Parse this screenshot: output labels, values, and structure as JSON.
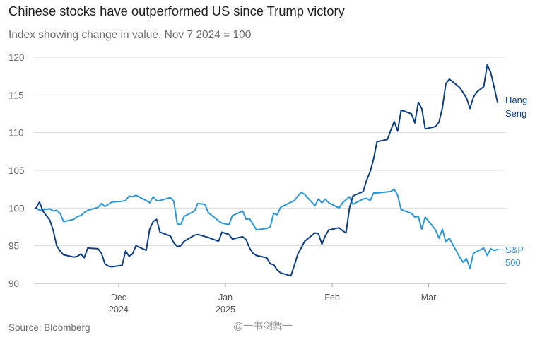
{
  "title": "Chinese stocks have outperformed US since Trump victory",
  "subtitle": "Index showing change in value. Nov 7 2024 = 100",
  "source": "Source: Bloomberg",
  "watermark": "@一书剑舞一",
  "colors": {
    "hang_seng": "#0d3f85",
    "sp500": "#2c97d6",
    "grid": "#dcdcdc",
    "axis": "#aaaaaa"
  },
  "chart_data": {
    "type": "line",
    "ylim": [
      89,
      121
    ],
    "yticks": [
      90,
      95,
      100,
      105,
      110,
      115,
      120
    ],
    "grid": true,
    "legend": "inline labels at line ends",
    "xticks": [
      {
        "date": "2024-12-01",
        "label1": "Dec",
        "label2": "2024"
      },
      {
        "date": "2025-01-01",
        "label1": "Jan",
        "label2": "2025"
      },
      {
        "date": "2025-02-01",
        "label1": "Feb",
        "label2": ""
      },
      {
        "date": "2025-03-01",
        "label1": "Mar",
        "label2": ""
      }
    ],
    "x_range": [
      "2024-11-07",
      "2025-03-21"
    ],
    "series": [
      {
        "name": "Hang Seng",
        "label_lines": [
          "Hang",
          "Seng"
        ],
        "points": [
          [
            "2024-11-07",
            100.0
          ],
          [
            "2024-11-08",
            100.8
          ],
          [
            "2024-11-09",
            99.6
          ],
          [
            "2024-11-11",
            98.4
          ],
          [
            "2024-11-12",
            97.0
          ],
          [
            "2024-11-13",
            95.0
          ],
          [
            "2024-11-14",
            94.3
          ],
          [
            "2024-11-15",
            93.8
          ],
          [
            "2024-11-18",
            93.5
          ],
          [
            "2024-11-19",
            93.6
          ],
          [
            "2024-11-20",
            93.9
          ],
          [
            "2024-11-21",
            93.4
          ],
          [
            "2024-11-22",
            94.7
          ],
          [
            "2024-11-25",
            94.6
          ],
          [
            "2024-11-26",
            94.0
          ],
          [
            "2024-11-27",
            92.6
          ],
          [
            "2024-11-28",
            92.3
          ],
          [
            "2024-11-29",
            92.2
          ],
          [
            "2024-12-02",
            92.4
          ],
          [
            "2024-12-03",
            94.3
          ],
          [
            "2024-12-04",
            93.6
          ],
          [
            "2024-12-05",
            93.9
          ],
          [
            "2024-12-06",
            95.0
          ],
          [
            "2024-12-09",
            94.4
          ],
          [
            "2024-12-10",
            97.2
          ],
          [
            "2024-12-11",
            98.2
          ],
          [
            "2024-12-12",
            98.5
          ],
          [
            "2024-12-13",
            96.8
          ],
          [
            "2024-12-16",
            96.3
          ],
          [
            "2024-12-17",
            95.4
          ],
          [
            "2024-12-18",
            94.9
          ],
          [
            "2024-12-19",
            95.0
          ],
          [
            "2024-12-20",
            95.6
          ],
          [
            "2024-12-23",
            96.4
          ],
          [
            "2024-12-24",
            96.5
          ],
          [
            "2024-12-27",
            96.1
          ],
          [
            "2024-12-30",
            95.6
          ],
          [
            "2024-12-31",
            96.8
          ],
          [
            "2025-01-02",
            96.5
          ],
          [
            "2025-01-03",
            95.9
          ],
          [
            "2025-01-06",
            96.2
          ],
          [
            "2025-01-07",
            95.8
          ],
          [
            "2025-01-08",
            94.7
          ],
          [
            "2025-01-09",
            94.0
          ],
          [
            "2025-01-10",
            93.7
          ],
          [
            "2025-01-13",
            93.4
          ],
          [
            "2025-01-14",
            92.6
          ],
          [
            "2025-01-15",
            92.5
          ],
          [
            "2025-01-16",
            91.8
          ],
          [
            "2025-01-17",
            91.4
          ],
          [
            "2025-01-20",
            91.0
          ],
          [
            "2025-01-21",
            92.4
          ],
          [
            "2025-01-22",
            93.9
          ],
          [
            "2025-01-23",
            94.7
          ],
          [
            "2025-01-24",
            95.6
          ],
          [
            "2025-01-27",
            96.7
          ],
          [
            "2025-01-28",
            96.6
          ],
          [
            "2025-01-29",
            95.2
          ],
          [
            "2025-01-30",
            96.3
          ],
          [
            "2025-01-31",
            97.1
          ],
          [
            "2025-02-03",
            97.4
          ],
          [
            "2025-02-04",
            97.0
          ],
          [
            "2025-02-05",
            96.7
          ],
          [
            "2025-02-06",
            100.0
          ],
          [
            "2025-02-07",
            101.6
          ],
          [
            "2025-02-10",
            102.2
          ],
          [
            "2025-02-11",
            103.7
          ],
          [
            "2025-02-12",
            104.8
          ],
          [
            "2025-02-13",
            106.5
          ],
          [
            "2025-02-14",
            108.8
          ],
          [
            "2025-02-17",
            109.1
          ],
          [
            "2025-02-18",
            110.3
          ],
          [
            "2025-02-19",
            111.5
          ],
          [
            "2025-02-20",
            110.2
          ],
          [
            "2025-02-21",
            113.0
          ],
          [
            "2025-02-24",
            112.5
          ],
          [
            "2025-02-25",
            111.3
          ],
          [
            "2025-02-26",
            114.0
          ],
          [
            "2025-02-27",
            113.2
          ],
          [
            "2025-02-28",
            110.5
          ],
          [
            "2025-03-03",
            110.8
          ],
          [
            "2025-03-04",
            111.4
          ],
          [
            "2025-03-05",
            113.3
          ],
          [
            "2025-03-06",
            116.5
          ],
          [
            "2025-03-07",
            117.1
          ],
          [
            "2025-03-10",
            116.0
          ],
          [
            "2025-03-11",
            115.3
          ],
          [
            "2025-03-12",
            114.6
          ],
          [
            "2025-03-13",
            113.2
          ],
          [
            "2025-03-14",
            114.7
          ],
          [
            "2025-03-15",
            115.4
          ],
          [
            "2025-03-17",
            116.1
          ],
          [
            "2025-03-18",
            119.0
          ],
          [
            "2025-03-19",
            118.0
          ],
          [
            "2025-03-20",
            116.1
          ],
          [
            "2025-03-21",
            114.0
          ]
        ]
      },
      {
        "name": "S&P 500",
        "label_lines": [
          "S&P",
          "500"
        ],
        "points": [
          [
            "2024-11-07",
            100.0
          ],
          [
            "2024-11-08",
            99.7
          ],
          [
            "2024-11-11",
            99.9
          ],
          [
            "2024-11-12",
            99.6
          ],
          [
            "2024-11-13",
            99.7
          ],
          [
            "2024-11-14",
            99.3
          ],
          [
            "2024-11-15",
            98.2
          ],
          [
            "2024-11-18",
            98.5
          ],
          [
            "2024-11-19",
            98.9
          ],
          [
            "2024-11-20",
            99.0
          ],
          [
            "2024-11-21",
            99.4
          ],
          [
            "2024-11-22",
            99.7
          ],
          [
            "2024-11-25",
            100.1
          ],
          [
            "2024-11-26",
            100.6
          ],
          [
            "2024-11-27",
            100.2
          ],
          [
            "2024-11-29",
            100.8
          ],
          [
            "2024-12-02",
            100.9
          ],
          [
            "2024-12-03",
            101.0
          ],
          [
            "2024-12-04",
            101.6
          ],
          [
            "2024-12-05",
            101.5
          ],
          [
            "2024-12-06",
            101.7
          ],
          [
            "2024-12-09",
            101.0
          ],
          [
            "2024-12-10",
            100.7
          ],
          [
            "2024-12-11",
            101.5
          ],
          [
            "2024-12-12",
            101.0
          ],
          [
            "2024-12-13",
            101.0
          ],
          [
            "2024-12-16",
            101.4
          ],
          [
            "2024-12-17",
            100.9
          ],
          [
            "2024-12-18",
            97.9
          ],
          [
            "2024-12-19",
            97.8
          ],
          [
            "2024-12-20",
            98.9
          ],
          [
            "2024-12-23",
            99.6
          ],
          [
            "2024-12-24",
            100.6
          ],
          [
            "2024-12-26",
            100.5
          ],
          [
            "2024-12-27",
            99.4
          ],
          [
            "2024-12-30",
            98.3
          ],
          [
            "2024-12-31",
            98.0
          ],
          [
            "2025-01-02",
            97.8
          ],
          [
            "2025-01-03",
            99.0
          ],
          [
            "2025-01-06",
            99.6
          ],
          [
            "2025-01-07",
            98.5
          ],
          [
            "2025-01-08",
            98.6
          ],
          [
            "2025-01-10",
            97.1
          ],
          [
            "2025-01-13",
            97.3
          ],
          [
            "2025-01-14",
            97.5
          ],
          [
            "2025-01-15",
            99.3
          ],
          [
            "2025-01-16",
            99.1
          ],
          [
            "2025-01-17",
            100.1
          ],
          [
            "2025-01-21",
            101.0
          ],
          [
            "2025-01-22",
            101.6
          ],
          [
            "2025-01-23",
            102.1
          ],
          [
            "2025-01-24",
            101.8
          ],
          [
            "2025-01-27",
            100.3
          ],
          [
            "2025-01-28",
            101.2
          ],
          [
            "2025-01-29",
            100.7
          ],
          [
            "2025-01-30",
            101.2
          ],
          [
            "2025-01-31",
            100.7
          ],
          [
            "2025-02-03",
            100.0
          ],
          [
            "2025-02-04",
            100.7
          ],
          [
            "2025-02-05",
            101.1
          ],
          [
            "2025-02-06",
            101.5
          ],
          [
            "2025-02-07",
            100.5
          ],
          [
            "2025-02-10",
            101.2
          ],
          [
            "2025-02-11",
            101.3
          ],
          [
            "2025-02-12",
            101.0
          ],
          [
            "2025-02-13",
            102.0
          ],
          [
            "2025-02-14",
            102.0
          ],
          [
            "2025-02-18",
            102.2
          ],
          [
            "2025-02-19",
            102.5
          ],
          [
            "2025-02-20",
            101.7
          ],
          [
            "2025-02-21",
            99.8
          ],
          [
            "2025-02-24",
            99.3
          ],
          [
            "2025-02-25",
            98.8
          ],
          [
            "2025-02-26",
            98.9
          ],
          [
            "2025-02-27",
            97.2
          ],
          [
            "2025-02-28",
            98.8
          ],
          [
            "2025-03-03",
            97.1
          ],
          [
            "2025-03-04",
            96.0
          ],
          [
            "2025-03-05",
            97.2
          ],
          [
            "2025-03-06",
            95.5
          ],
          [
            "2025-03-07",
            96.0
          ],
          [
            "2025-03-10",
            93.5
          ],
          [
            "2025-03-11",
            92.8
          ],
          [
            "2025-03-12",
            93.3
          ],
          [
            "2025-03-13",
            92.0
          ],
          [
            "2025-03-14",
            94.0
          ],
          [
            "2025-03-17",
            94.7
          ],
          [
            "2025-03-18",
            93.7
          ],
          [
            "2025-03-19",
            94.6
          ],
          [
            "2025-03-20",
            94.4
          ],
          [
            "2025-03-21",
            94.5
          ]
        ]
      }
    ]
  }
}
